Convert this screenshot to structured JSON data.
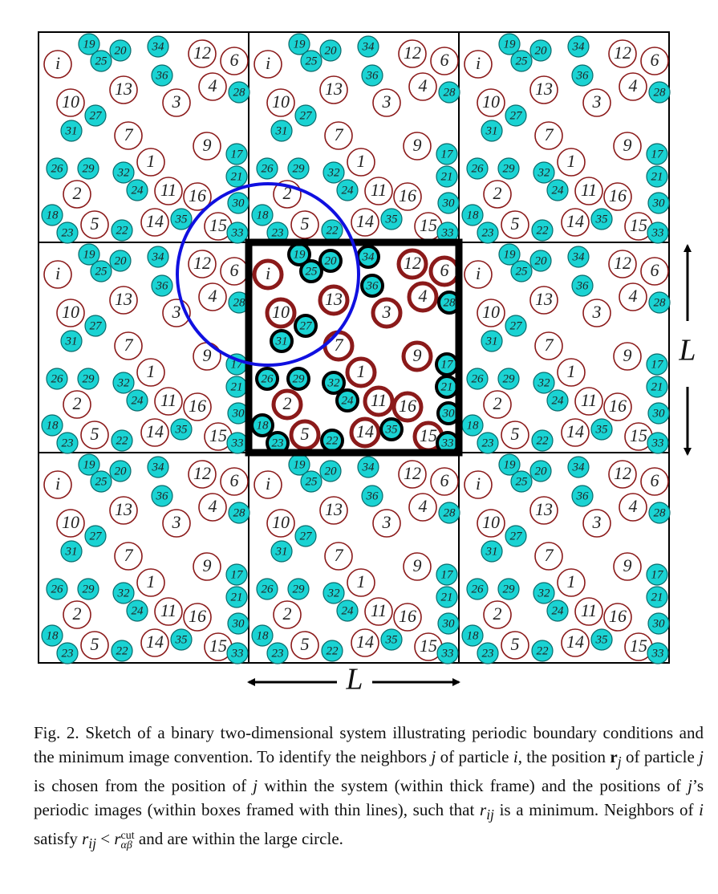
{
  "figure": {
    "length_label_horizontal": "L",
    "length_label_vertical": "L",
    "colors": {
      "large_particle": "#8b1a1a",
      "small_particle_fill": "#1ad3d3",
      "small_particle_text": "#0b3a3a",
      "neighbor_circle": "#1010e0",
      "frame": "#000000"
    },
    "particle_labels": [
      "i",
      "1",
      "2",
      "3",
      "4",
      "5",
      "6",
      "7",
      "9",
      "10",
      "11",
      "12",
      "13",
      "14",
      "15",
      "16",
      "17",
      "18",
      "19",
      "20",
      "21",
      "22",
      "23",
      "24",
      "25",
      "26",
      "27",
      "28",
      "29",
      "30",
      "31",
      "32",
      "33",
      "34",
      "35",
      "36"
    ]
  },
  "caption": {
    "parts": [
      "Fig. 2. Sketch of a binary two-dimensional system illustrating periodic boundary conditions and the minimum image convention. To identify the neighbors ",
      "j",
      " of particle ",
      "i",
      ", the position ",
      "r",
      "j",
      " of particle ",
      "j",
      " is chosen from the position of ",
      "j",
      " within the system (within thick frame) and the positions of ",
      "j",
      "’s periodic images (within boxes framed with thin lines), such that ",
      "r",
      "ij",
      " is a minimum. Neighbors of ",
      "i",
      " satisfy ",
      "r",
      "ij",
      " < ",
      "r",
      "cut",
      "αβ",
      " and are within the large circle."
    ]
  }
}
